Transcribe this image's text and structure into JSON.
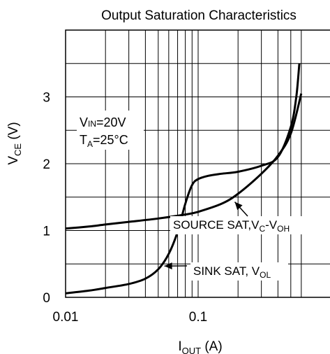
{
  "chart_data": {
    "type": "line",
    "title": "Output Saturation Characteristics",
    "x_scale": "log",
    "xlim": [
      0.01,
      0.7
    ],
    "ylim": [
      0,
      4
    ],
    "grid": true,
    "x_tick_labels": [
      "0.01",
      "0.1"
    ],
    "y_tick_labels": [
      "0",
      "1",
      "2",
      "3"
    ],
    "ylabel": {
      "main": "V",
      "sub": "CE",
      "unit": " (V)"
    },
    "xlabel": {
      "main": "I",
      "sub": "OUT",
      "unit": " (A)"
    },
    "conditions": [
      {
        "main": "V",
        "sub": "IN",
        "rest": "=20V"
      },
      {
        "main": "T",
        "sub": "A",
        "rest": "=25°C"
      }
    ],
    "series": [
      {
        "name": {
          "main": "SOURCE SAT,V",
          "sub": "C",
          "mid": "-V",
          "sub2": "OH"
        },
        "x": [
          0.01,
          0.015,
          0.02,
          0.03,
          0.05,
          0.08,
          0.1,
          0.15,
          0.2,
          0.3,
          0.4,
          0.5,
          0.6
        ],
        "y": [
          1.03,
          1.06,
          1.09,
          1.13,
          1.18,
          1.24,
          1.28,
          1.4,
          1.55,
          1.85,
          2.12,
          2.45,
          3.05
        ]
      },
      {
        "name": {
          "main": "SINK SAT, V",
          "sub": "OL"
        },
        "x": [
          0.01,
          0.015,
          0.02,
          0.03,
          0.04,
          0.05,
          0.06,
          0.07,
          0.08,
          0.09,
          0.1,
          0.12,
          0.15,
          0.2,
          0.3,
          0.4,
          0.5,
          0.55,
          0.58
        ],
        "y": [
          0.06,
          0.1,
          0.14,
          0.2,
          0.28,
          0.42,
          0.65,
          0.98,
          1.4,
          1.68,
          1.77,
          1.82,
          1.85,
          1.88,
          1.97,
          2.1,
          2.55,
          3.0,
          3.5
        ]
      }
    ]
  }
}
